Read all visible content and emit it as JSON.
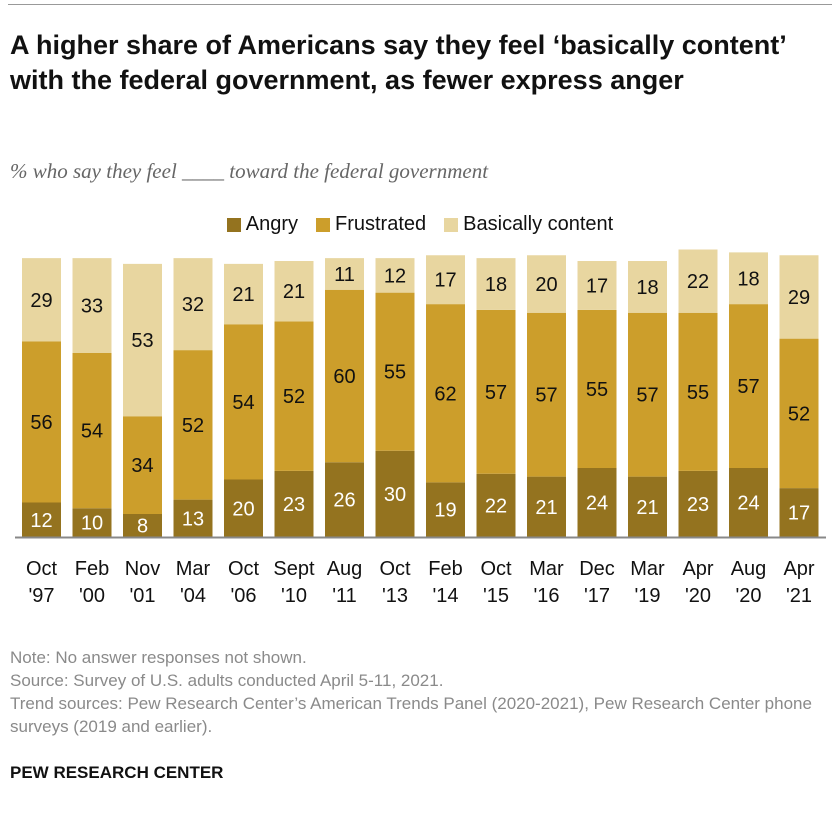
{
  "title": "A higher share of Americans say they feel ‘basically content’ with the federal government, as fewer express anger",
  "subtitle": "% who say they feel ____ toward the federal government",
  "notes": [
    "Note: No answer responses not shown.",
    "Source: Survey of U.S. adults conducted April 5-11, 2021.",
    "Trend sources: Pew Research Center’s American Trends Panel (2020-2021), Pew Research Center phone surveys (2019 and earlier)."
  ],
  "brand": "PEW RESEARCH CENTER",
  "chart_data": {
    "type": "bar",
    "stacked": true,
    "categories": [
      [
        "Oct",
        "'97"
      ],
      [
        "Feb",
        "'00"
      ],
      [
        "Nov",
        "'01"
      ],
      [
        "Mar",
        "'04"
      ],
      [
        "Oct",
        "'06"
      ],
      [
        "Sept",
        "'10"
      ],
      [
        "Aug",
        "'11"
      ],
      [
        "Oct",
        "'13"
      ],
      [
        "Feb",
        "'14"
      ],
      [
        "Oct",
        "'15"
      ],
      [
        "Mar",
        "'16"
      ],
      [
        "Dec",
        "'17"
      ],
      [
        "Mar",
        "'19"
      ],
      [
        "Apr",
        "'20"
      ],
      [
        "Aug",
        "'20"
      ],
      [
        "Apr",
        "'21"
      ]
    ],
    "series": [
      {
        "name": "Angry",
        "color": "#94731f",
        "label_color": "#ffffff",
        "values": [
          12,
          10,
          8,
          13,
          20,
          23,
          26,
          30,
          19,
          22,
          21,
          24,
          21,
          23,
          24,
          17
        ]
      },
      {
        "name": "Frustrated",
        "color": "#cc9e2b",
        "label_color": "#111111",
        "values": [
          56,
          54,
          34,
          52,
          54,
          52,
          60,
          55,
          62,
          57,
          57,
          55,
          57,
          55,
          57,
          52
        ]
      },
      {
        "name": "Basically content",
        "color": "#e8d6a0",
        "label_color": "#111111",
        "values": [
          29,
          33,
          53,
          32,
          21,
          21,
          11,
          12,
          17,
          18,
          20,
          17,
          18,
          22,
          18,
          29
        ]
      }
    ],
    "legend": "top-center",
    "ylim": [
      0,
      100
    ],
    "grid": false
  }
}
